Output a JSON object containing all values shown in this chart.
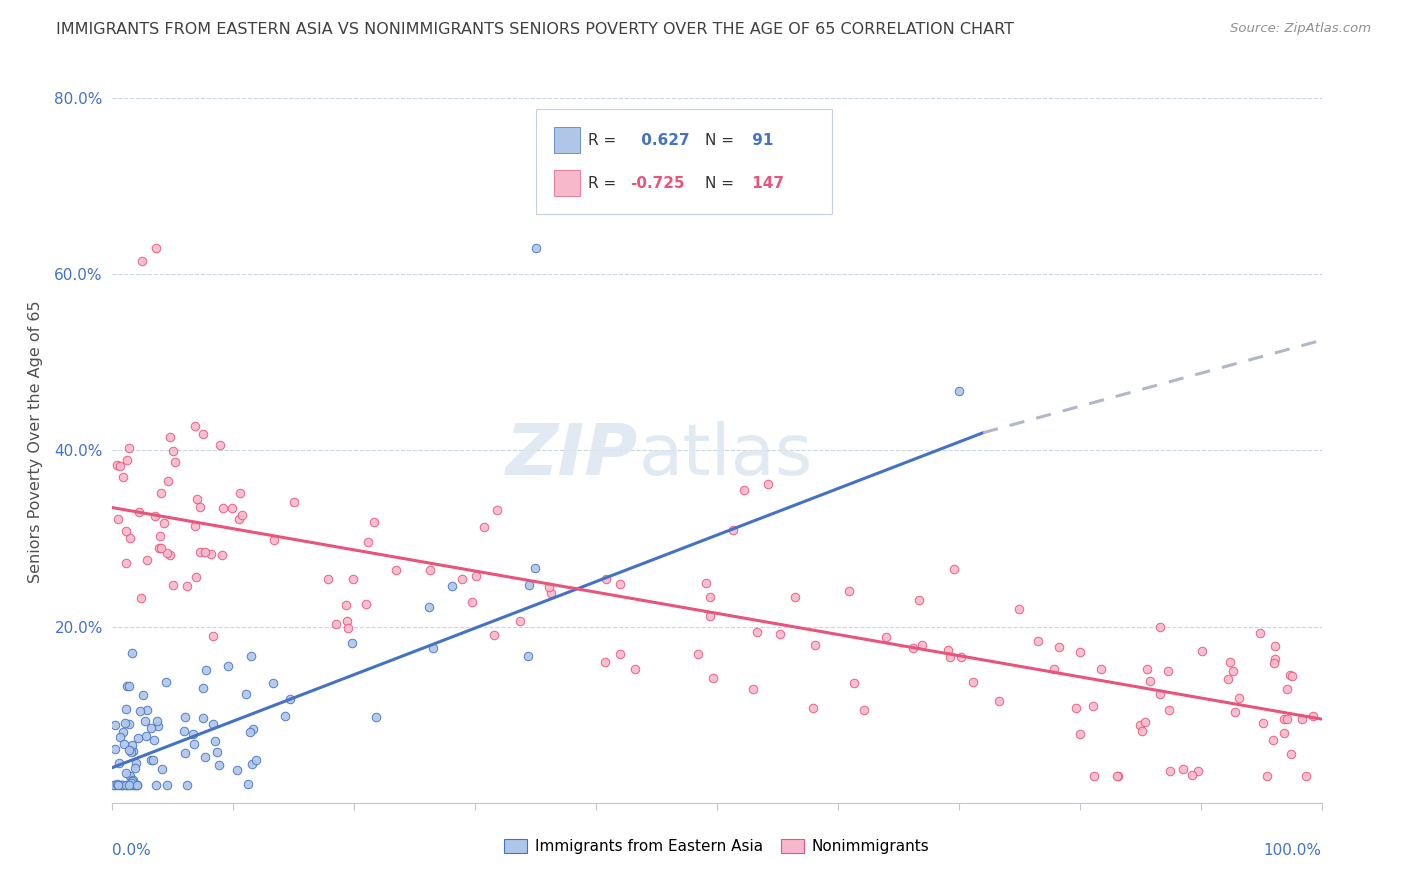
{
  "title": "IMMIGRANTS FROM EASTERN ASIA VS NONIMMIGRANTS SENIORS POVERTY OVER THE AGE OF 65 CORRELATION CHART",
  "source": "Source: ZipAtlas.com",
  "ylabel": "Seniors Poverty Over the Age of 65",
  "legend_label1": "Immigrants from Eastern Asia",
  "legend_label2": "Nonimmigrants",
  "R1": 0.627,
  "N1": 91,
  "R2": -0.725,
  "N2": 147,
  "color_blue": "#aec6e8",
  "color_pink": "#f7b8cb",
  "line_blue": "#4472c4",
  "line_pink": "#e8547a",
  "line_dash": "#b0b8c8",
  "watermark_color": "#dce6f0",
  "background": "#ffffff",
  "grid_color": "#c8d4e8",
  "ytick_color": "#4472c4",
  "xtick_color": "#4472c4",
  "title_color": "#404040",
  "source_color": "#909090",
  "xlim": [
    0.0,
    1.0
  ],
  "ylim": [
    0.0,
    0.82
  ],
  "yticks": [
    0.0,
    0.2,
    0.4,
    0.6,
    0.8
  ],
  "ytick_labels": [
    "",
    "20.0%",
    "40.0%",
    "60.0%",
    "80.0%"
  ],
  "blue_line_x0": 0.0,
  "blue_line_y0": 0.04,
  "blue_line_x1": 0.72,
  "blue_line_y1": 0.42,
  "dash_line_x0": 0.72,
  "dash_line_y0": 0.42,
  "dash_line_x1": 1.0,
  "dash_line_y1": 0.525,
  "pink_line_x0": 0.0,
  "pink_line_y0": 0.335,
  "pink_line_x1": 1.0,
  "pink_line_y1": 0.095
}
